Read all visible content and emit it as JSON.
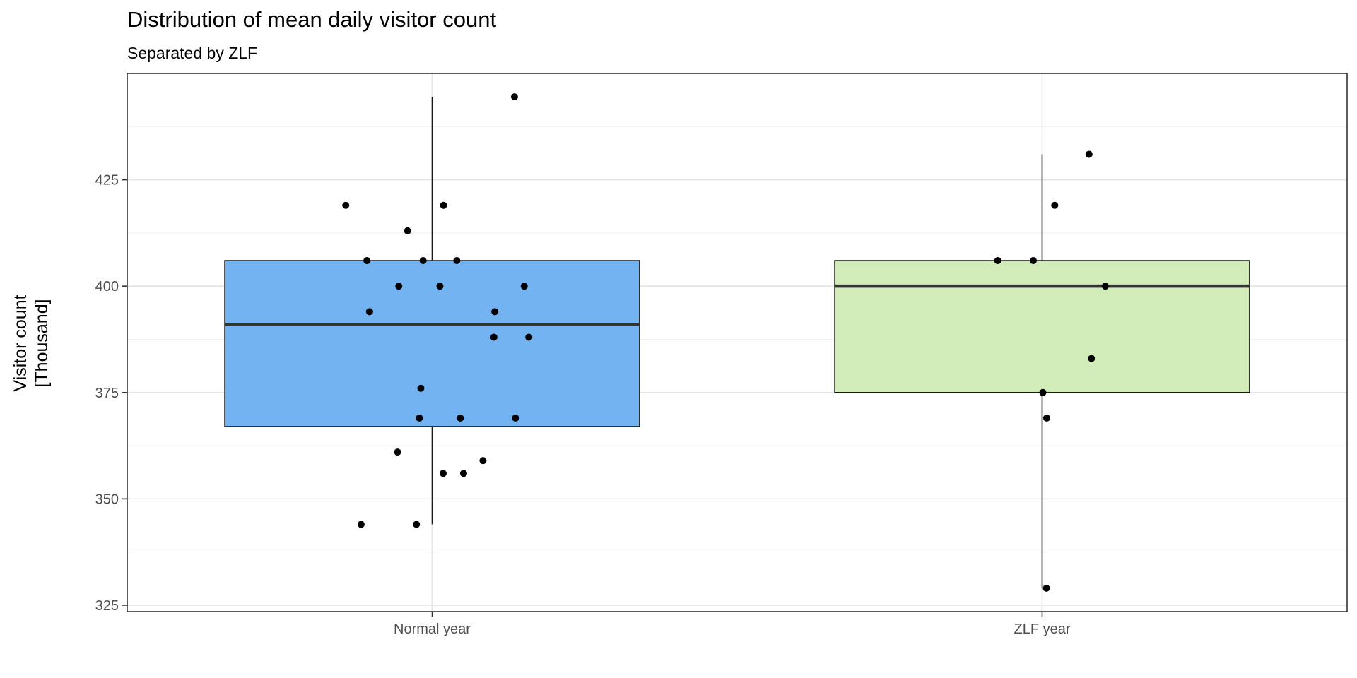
{
  "chart_data": {
    "type": "box",
    "title": "Distribution of mean daily visitor count",
    "subtitle": "Separated by ZLF",
    "xlabel": "",
    "ylabel": [
      "Visitor count",
      "[Thousand]"
    ],
    "categories": [
      "Normal year",
      "ZLF year"
    ],
    "ylim": [
      323.5,
      450
    ],
    "y_ticks": [
      325,
      350,
      375,
      400,
      425
    ],
    "grid": true,
    "legend": "none",
    "boxes": [
      {
        "category": "Normal year",
        "color": "#74b3f1",
        "whisker_low": 344,
        "q1": 367,
        "median": 391,
        "q3": 406,
        "whisker_high": 444.5
      },
      {
        "category": "ZLF year",
        "color": "#d1ecb9",
        "whisker_low": 329,
        "q1": 375,
        "median": 400,
        "q3": 406,
        "whisker_high": 431
      }
    ],
    "points": [
      {
        "category": "Normal year",
        "values": [
          444.5,
          419,
          419,
          413,
          406,
          406,
          406,
          400,
          400,
          400,
          394,
          394,
          388,
          388,
          376,
          369,
          369,
          369,
          361,
          359,
          356,
          356,
          344,
          344
        ]
      },
      {
        "category": "ZLF year",
        "values": [
          431,
          419,
          406,
          406,
          400,
          383,
          375,
          369,
          329
        ]
      }
    ]
  }
}
